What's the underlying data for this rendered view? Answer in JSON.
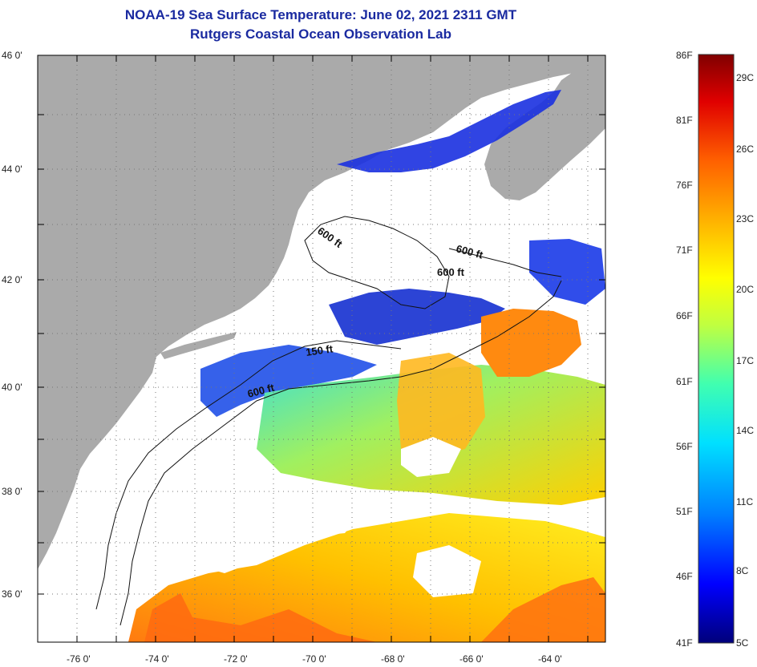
{
  "header": {
    "title": "NOAA-19 Sea Surface Temperature:  June 02, 2021 2311 GMT",
    "subtitle": "Rutgers Coastal Ocean Observation Lab"
  },
  "axes": {
    "lat_labels": [
      "46 0'",
      "44 0'",
      "42 0'",
      "40 0'",
      "38 0'",
      "36 0'"
    ],
    "lon_labels": [
      "-76 0'",
      "-74 0'",
      "-72 0'",
      "-70 0'",
      "-68 0'",
      "-66 0'",
      "-64 0'"
    ]
  },
  "contour_labels": [
    "600 ft",
    "600 ft",
    "600 ft",
    "150 ft",
    "600 ft"
  ],
  "colorbar": {
    "fahrenheit": [
      "86F",
      "81F",
      "76F",
      "71F",
      "66F",
      "61F",
      "56F",
      "51F",
      "46F",
      "41F"
    ],
    "celsius": [
      "29C",
      "26C",
      "23C",
      "20C",
      "17C",
      "14C",
      "11C",
      "8C",
      "5C"
    ],
    "colors": [
      "#00007a",
      "#0000ff",
      "#0080ff",
      "#00e0ff",
      "#40ffb0",
      "#c0ff40",
      "#ffff00",
      "#ffb000",
      "#ff6000",
      "#e00000",
      "#800000"
    ]
  },
  "colors": {
    "land": "#aaaaaa",
    "cloud": "#ffffff",
    "title": "#1a2aa0",
    "frame": "#000000"
  }
}
